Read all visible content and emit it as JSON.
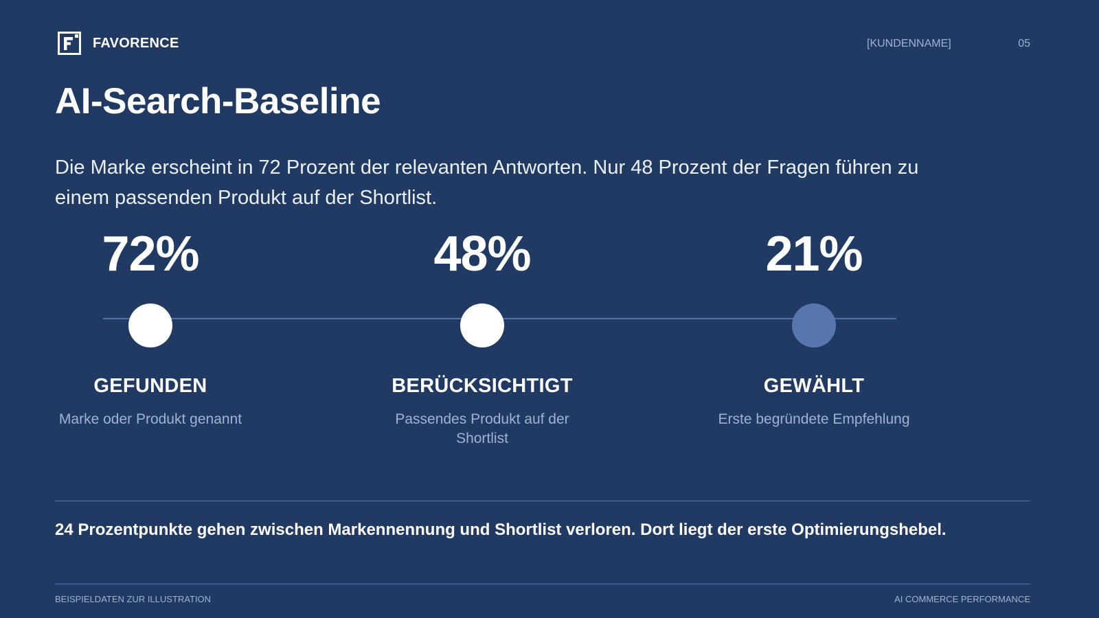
{
  "header": {
    "brand": "FAVORENCE",
    "logo_icon": "favorence-f-logo-icon",
    "client": "[KUNDENNAME]",
    "page_number": "05"
  },
  "slide": {
    "title": "AI-Search-Baseline",
    "lead": "Die Marke erscheint in 72 Prozent der relevanten Antworten. Nur 48 Prozent der Fragen führen zu einem passenden Produkt auf der Shortlist."
  },
  "stages": [
    {
      "value": "72%",
      "label": "GEFUNDEN",
      "description": "Marke oder Produkt genannt",
      "dot_color": "#ffffff"
    },
    {
      "value": "48%",
      "label": "BERÜCKSICHTIGT",
      "description": "Passendes Produkt auf der Shortlist",
      "dot_color": "#ffffff"
    },
    {
      "value": "21%",
      "label": "GEWÄHLT",
      "description": "Erste begründete Empfehlung",
      "dot_color": "#5676ad"
    }
  ],
  "takeaway": "24 Prozentpunkte gehen zwischen Markennennung und Shortlist verloren. Dort liegt der erste Optimierungshebel.",
  "footer": {
    "left": "BEISPIELDATEN ZUR ILLUSTRATION",
    "right": "AI COMMERCE PERFORMANCE"
  },
  "colors": {
    "background": "#213a63",
    "accent_line": "#4f72a8",
    "muted_text": "#9fb3d3"
  }
}
